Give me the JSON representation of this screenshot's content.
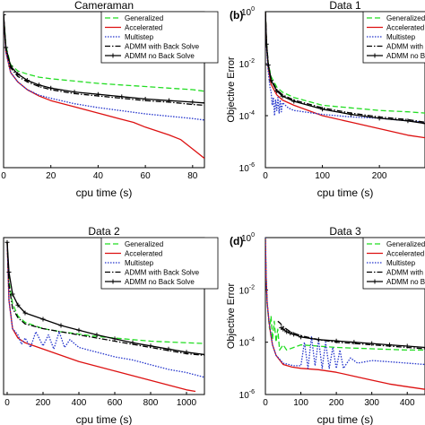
{
  "chart_data": [
    {
      "type": "line",
      "title": "Cameraman",
      "panel_label": "",
      "xlabel": "cpu time (s)",
      "ylabel": "",
      "x_ticks": [
        "0",
        "20",
        "40",
        "60",
        "80"
      ],
      "y_ticks": [],
      "xlim": [
        0,
        85
      ],
      "ylim": [
        0,
        1
      ],
      "yscale": "linear",
      "grid": false,
      "legend_position": "top-right",
      "series": [
        {
          "name": "Generalized",
          "color": "#22dd22",
          "dash": "6,3",
          "marker": "none",
          "x": [
            0,
            1,
            3,
            6,
            10,
            15,
            20,
            30,
            40,
            50,
            60,
            70,
            80,
            85
          ],
          "y": [
            0.98,
            0.78,
            0.66,
            0.62,
            0.6,
            0.58,
            0.57,
            0.555,
            0.54,
            0.53,
            0.52,
            0.51,
            0.5,
            0.49
          ]
        },
        {
          "name": "Accelerated",
          "color": "#dd1111",
          "dash": "",
          "marker": "none",
          "x": [
            0,
            1,
            3,
            6,
            10,
            15,
            20,
            30,
            40,
            50,
            55,
            60,
            70,
            75,
            80,
            85
          ],
          "y": [
            0.98,
            0.74,
            0.61,
            0.55,
            0.5,
            0.46,
            0.43,
            0.39,
            0.35,
            0.31,
            0.29,
            0.26,
            0.21,
            0.18,
            0.12,
            0.06
          ]
        },
        {
          "name": "Multistep",
          "color": "#2233cc",
          "dash": "1.5,1.5",
          "marker": "none",
          "x": [
            0,
            1,
            3,
            6,
            10,
            15,
            20,
            30,
            40,
            50,
            60,
            70,
            80,
            85
          ],
          "y": [
            0.98,
            0.74,
            0.61,
            0.55,
            0.5,
            0.465,
            0.445,
            0.41,
            0.385,
            0.365,
            0.345,
            0.33,
            0.315,
            0.305
          ]
        },
        {
          "name": "ADMM with Back Solve",
          "color": "#000000",
          "dash": "6,2,1.5,2",
          "marker": "none",
          "x": [
            0,
            1,
            3,
            6,
            10,
            15,
            20,
            30,
            40,
            50,
            60,
            70,
            80,
            85
          ],
          "y": [
            0.98,
            0.76,
            0.64,
            0.585,
            0.55,
            0.52,
            0.5,
            0.475,
            0.46,
            0.445,
            0.43,
            0.42,
            0.405,
            0.4
          ]
        },
        {
          "name": "ADMM no Back Solve",
          "color": "#000000",
          "dash": "",
          "marker": "plus",
          "x": [
            0,
            1,
            3,
            6,
            10,
            15,
            20,
            30,
            40,
            50,
            60,
            70,
            80,
            85
          ],
          "y": [
            0.98,
            0.77,
            0.65,
            0.6,
            0.56,
            0.53,
            0.51,
            0.485,
            0.47,
            0.455,
            0.44,
            0.43,
            0.42,
            0.415
          ]
        }
      ]
    },
    {
      "type": "line",
      "title": "Data 1",
      "panel_label": "(b)",
      "xlabel": "cpu time (s)",
      "ylabel": "Objective Error",
      "x_ticks": [
        "0",
        "100",
        "200"
      ],
      "y_ticks": [
        "10",
        "10",
        "10",
        "10"
      ],
      "y_tick_exponents": [
        "0",
        "-2",
        "-4",
        "-6"
      ],
      "xlim": [
        0,
        280
      ],
      "ylim": [
        -6,
        0
      ],
      "yscale": "log10",
      "grid": false,
      "legend_position": "top-right",
      "series": [
        {
          "name": "Generalized",
          "color": "#22dd22",
          "dash": "6,3",
          "marker": "none",
          "x": [
            0,
            2,
            5,
            10,
            20,
            30,
            50,
            100,
            150,
            200,
            250,
            280
          ],
          "y": [
            0,
            -1.2,
            -2.0,
            -2.5,
            -2.9,
            -3.1,
            -3.3,
            -3.6,
            -3.7,
            -3.8,
            -3.85,
            -3.9
          ]
        },
        {
          "name": "Accelerated",
          "color": "#dd1111",
          "dash": "",
          "marker": "none",
          "x": [
            0,
            2,
            5,
            10,
            20,
            30,
            50,
            100,
            150,
            200,
            250,
            280
          ],
          "y": [
            0,
            -1.3,
            -2.2,
            -2.8,
            -3.2,
            -3.4,
            -3.6,
            -4.0,
            -4.25,
            -4.5,
            -4.75,
            -4.85
          ]
        },
        {
          "name": "Multistep",
          "color": "#2233cc",
          "dash": "1.5,1.5",
          "marker": "none",
          "x": [
            0,
            2,
            5,
            8,
            10,
            12,
            14,
            16,
            18,
            20,
            22,
            24,
            26,
            28,
            30,
            35,
            40,
            50,
            100,
            150,
            200,
            250,
            280
          ],
          "y": [
            0,
            -1.4,
            -2.3,
            -2.9,
            -3.1,
            -3.6,
            -3.3,
            -4.0,
            -3.4,
            -3.8,
            -3.3,
            -3.9,
            -3.4,
            -3.85,
            -3.5,
            -3.6,
            -3.7,
            -3.8,
            -3.95,
            -4.05,
            -4.1,
            -4.2,
            -4.25
          ]
        },
        {
          "name": "ADMM with Back Solve",
          "color": "#000000",
          "dash": "6,2,1.5,2",
          "marker": "none",
          "x": [
            0,
            2,
            5,
            10,
            20,
            30,
            50,
            100,
            150,
            200,
            250,
            280
          ],
          "y": [
            0,
            -1.2,
            -2.0,
            -2.6,
            -3.0,
            -3.2,
            -3.4,
            -3.7,
            -3.9,
            -4.05,
            -4.15,
            -4.25
          ]
        },
        {
          "name": "ADMM no Back Solve",
          "color": "#000000",
          "dash": "",
          "marker": "plus",
          "x": [
            0,
            2,
            5,
            10,
            20,
            30,
            50,
            100,
            150,
            200,
            250,
            280
          ],
          "y": [
            0,
            -1.25,
            -2.05,
            -2.65,
            -3.05,
            -3.25,
            -3.45,
            -3.75,
            -3.95,
            -4.1,
            -4.2,
            -4.3
          ]
        }
      ]
    },
    {
      "type": "line",
      "title": "Data 2",
      "panel_label": "",
      "xlabel": "cpu time (s)",
      "ylabel": "",
      "x_ticks": [
        "0",
        "200",
        "400",
        "600",
        "800",
        "1000"
      ],
      "y_ticks": [],
      "xlim": [
        -20,
        1100
      ],
      "ylim": [
        0,
        1
      ],
      "yscale": "linear",
      "grid": false,
      "legend_position": "top-right",
      "series": [
        {
          "name": "Generalized",
          "color": "#22dd22",
          "dash": "6,3",
          "marker": "none",
          "x": [
            0,
            10,
            30,
            60,
            100,
            200,
            300,
            400,
            500,
            600,
            700,
            800,
            900,
            1000,
            1100
          ],
          "y": [
            0.97,
            0.72,
            0.58,
            0.5,
            0.46,
            0.42,
            0.4,
            0.385,
            0.37,
            0.36,
            0.35,
            0.34,
            0.335,
            0.33,
            0.325
          ]
        },
        {
          "name": "Accelerated",
          "color": "#dd1111",
          "dash": "",
          "marker": "none",
          "x": [
            0,
            10,
            30,
            60,
            100,
            200,
            300,
            400,
            500,
            600,
            700,
            800,
            900,
            1000,
            1050
          ],
          "y": [
            0.97,
            0.6,
            0.42,
            0.36,
            0.33,
            0.29,
            0.25,
            0.21,
            0.18,
            0.15,
            0.12,
            0.09,
            0.06,
            0.03,
            0.02
          ]
        },
        {
          "name": "Multistep",
          "color": "#2233cc",
          "dash": "1.5,1.5",
          "marker": "none",
          "x": [
            0,
            10,
            30,
            60,
            80,
            100,
            130,
            160,
            200,
            230,
            260,
            290,
            320,
            350,
            400,
            500,
            600,
            700,
            800,
            900,
            1000,
            1100
          ],
          "y": [
            0.97,
            0.6,
            0.42,
            0.38,
            0.32,
            0.36,
            0.3,
            0.4,
            0.31,
            0.38,
            0.29,
            0.4,
            0.3,
            0.35,
            0.3,
            0.27,
            0.24,
            0.22,
            0.19,
            0.16,
            0.14,
            0.11
          ]
        },
        {
          "name": "ADMM with Back Solve",
          "color": "#000000",
          "dash": "6,2,1.5,2",
          "marker": "none",
          "x": [
            0,
            10,
            30,
            60,
            100,
            200,
            300,
            400,
            500,
            600,
            700,
            800,
            900,
            1000,
            1100
          ],
          "y": [
            0.97,
            0.7,
            0.55,
            0.49,
            0.45,
            0.42,
            0.4,
            0.38,
            0.36,
            0.34,
            0.32,
            0.3,
            0.28,
            0.26,
            0.25
          ]
        },
        {
          "name": "ADMM no Back Solve",
          "color": "#000000",
          "dash": "",
          "marker": "plus",
          "x": [
            0,
            10,
            30,
            60,
            100,
            200,
            300,
            400,
            500,
            600,
            700,
            800,
            900,
            1000,
            1100
          ],
          "y": [
            0.97,
            0.78,
            0.64,
            0.57,
            0.52,
            0.48,
            0.44,
            0.41,
            0.38,
            0.355,
            0.33,
            0.31,
            0.29,
            0.27,
            0.255
          ]
        }
      ]
    },
    {
      "type": "line",
      "title": "Data 3",
      "panel_label": "(d)",
      "xlabel": "cpu time (s)",
      "ylabel": "Objective Error",
      "x_ticks": [
        "0",
        "100",
        "200",
        "300",
        "400"
      ],
      "y_ticks": [
        "10",
        "10",
        "10",
        "10"
      ],
      "y_tick_exponents": [
        "0",
        "-2",
        "-4",
        "-6"
      ],
      "xlim": [
        0,
        450
      ],
      "ylim": [
        -6,
        0
      ],
      "yscale": "log10",
      "grid": false,
      "legend_position": "top-right",
      "series": [
        {
          "name": "Generalized",
          "color": "#22dd22",
          "dash": "6,3",
          "marker": "none",
          "x": [
            0,
            2,
            5,
            8,
            12,
            16,
            20,
            25,
            30,
            35,
            40,
            50,
            60,
            80,
            100,
            150,
            200,
            300,
            400,
            450
          ],
          "y": [
            0,
            -1.5,
            -2.5,
            -3.0,
            -3.5,
            -3.0,
            -3.9,
            -3.2,
            -4.0,
            -3.5,
            -4.3,
            -4.1,
            -4.3,
            -4.2,
            -4.1,
            -4.15,
            -4.2,
            -4.25,
            -4.3,
            -4.3
          ]
        },
        {
          "name": "Accelerated",
          "color": "#dd1111",
          "dash": "",
          "marker": "none",
          "x": [
            0,
            2,
            5,
            10,
            15,
            20,
            30,
            50,
            75,
            100,
            150,
            200,
            250,
            300,
            350,
            400,
            450
          ],
          "y": [
            0,
            -1.5,
            -2.5,
            -3.2,
            -3.7,
            -4.1,
            -4.5,
            -4.85,
            -4.95,
            -5.0,
            -5.05,
            -5.15,
            -5.3,
            -5.45,
            -5.6,
            -5.7,
            -5.8
          ]
        },
        {
          "name": "Multistep",
          "color": "#2233cc",
          "dash": "1.5,1.5",
          "marker": "none",
          "x": [
            0,
            2,
            5,
            10,
            20,
            30,
            50,
            80,
            100,
            110,
            120,
            130,
            140,
            150,
            160,
            170,
            180,
            190,
            200,
            210,
            220,
            240,
            260,
            300,
            350,
            400,
            450
          ],
          "y": [
            0,
            -1.5,
            -2.5,
            -3.2,
            -4.1,
            -4.5,
            -4.8,
            -4.9,
            -4.9,
            -4.0,
            -5.0,
            -3.8,
            -4.9,
            -3.9,
            -5.0,
            -4.0,
            -5.0,
            -4.2,
            -5.0,
            -4.3,
            -5.0,
            -4.6,
            -4.8,
            -4.7,
            -4.75,
            -4.8,
            -4.85
          ]
        },
        {
          "name": "ADMM with Back Solve",
          "color": "#000000",
          "dash": "6,2,1.5,2",
          "marker": "none",
          "x": [
            35,
            40,
            50,
            60,
            70,
            80,
            100,
            150,
            200,
            250,
            300,
            350,
            400,
            450
          ],
          "y": [
            -3.2,
            -3.25,
            -3.4,
            -3.5,
            -3.6,
            -3.65,
            -3.75,
            -3.9,
            -4.0,
            -4.05,
            -4.1,
            -4.15,
            -4.2,
            -4.25
          ]
        },
        {
          "name": "ADMM no Back Solve",
          "color": "#000000",
          "dash": "",
          "marker": "plus",
          "x": [
            45,
            50,
            60,
            70,
            80,
            100,
            150,
            200,
            250,
            300,
            350,
            400,
            450
          ],
          "y": [
            -3.45,
            -3.5,
            -3.6,
            -3.65,
            -3.7,
            -3.8,
            -3.9,
            -3.95,
            -4.0,
            -4.05,
            -4.1,
            -4.15,
            -4.2
          ]
        }
      ]
    }
  ]
}
